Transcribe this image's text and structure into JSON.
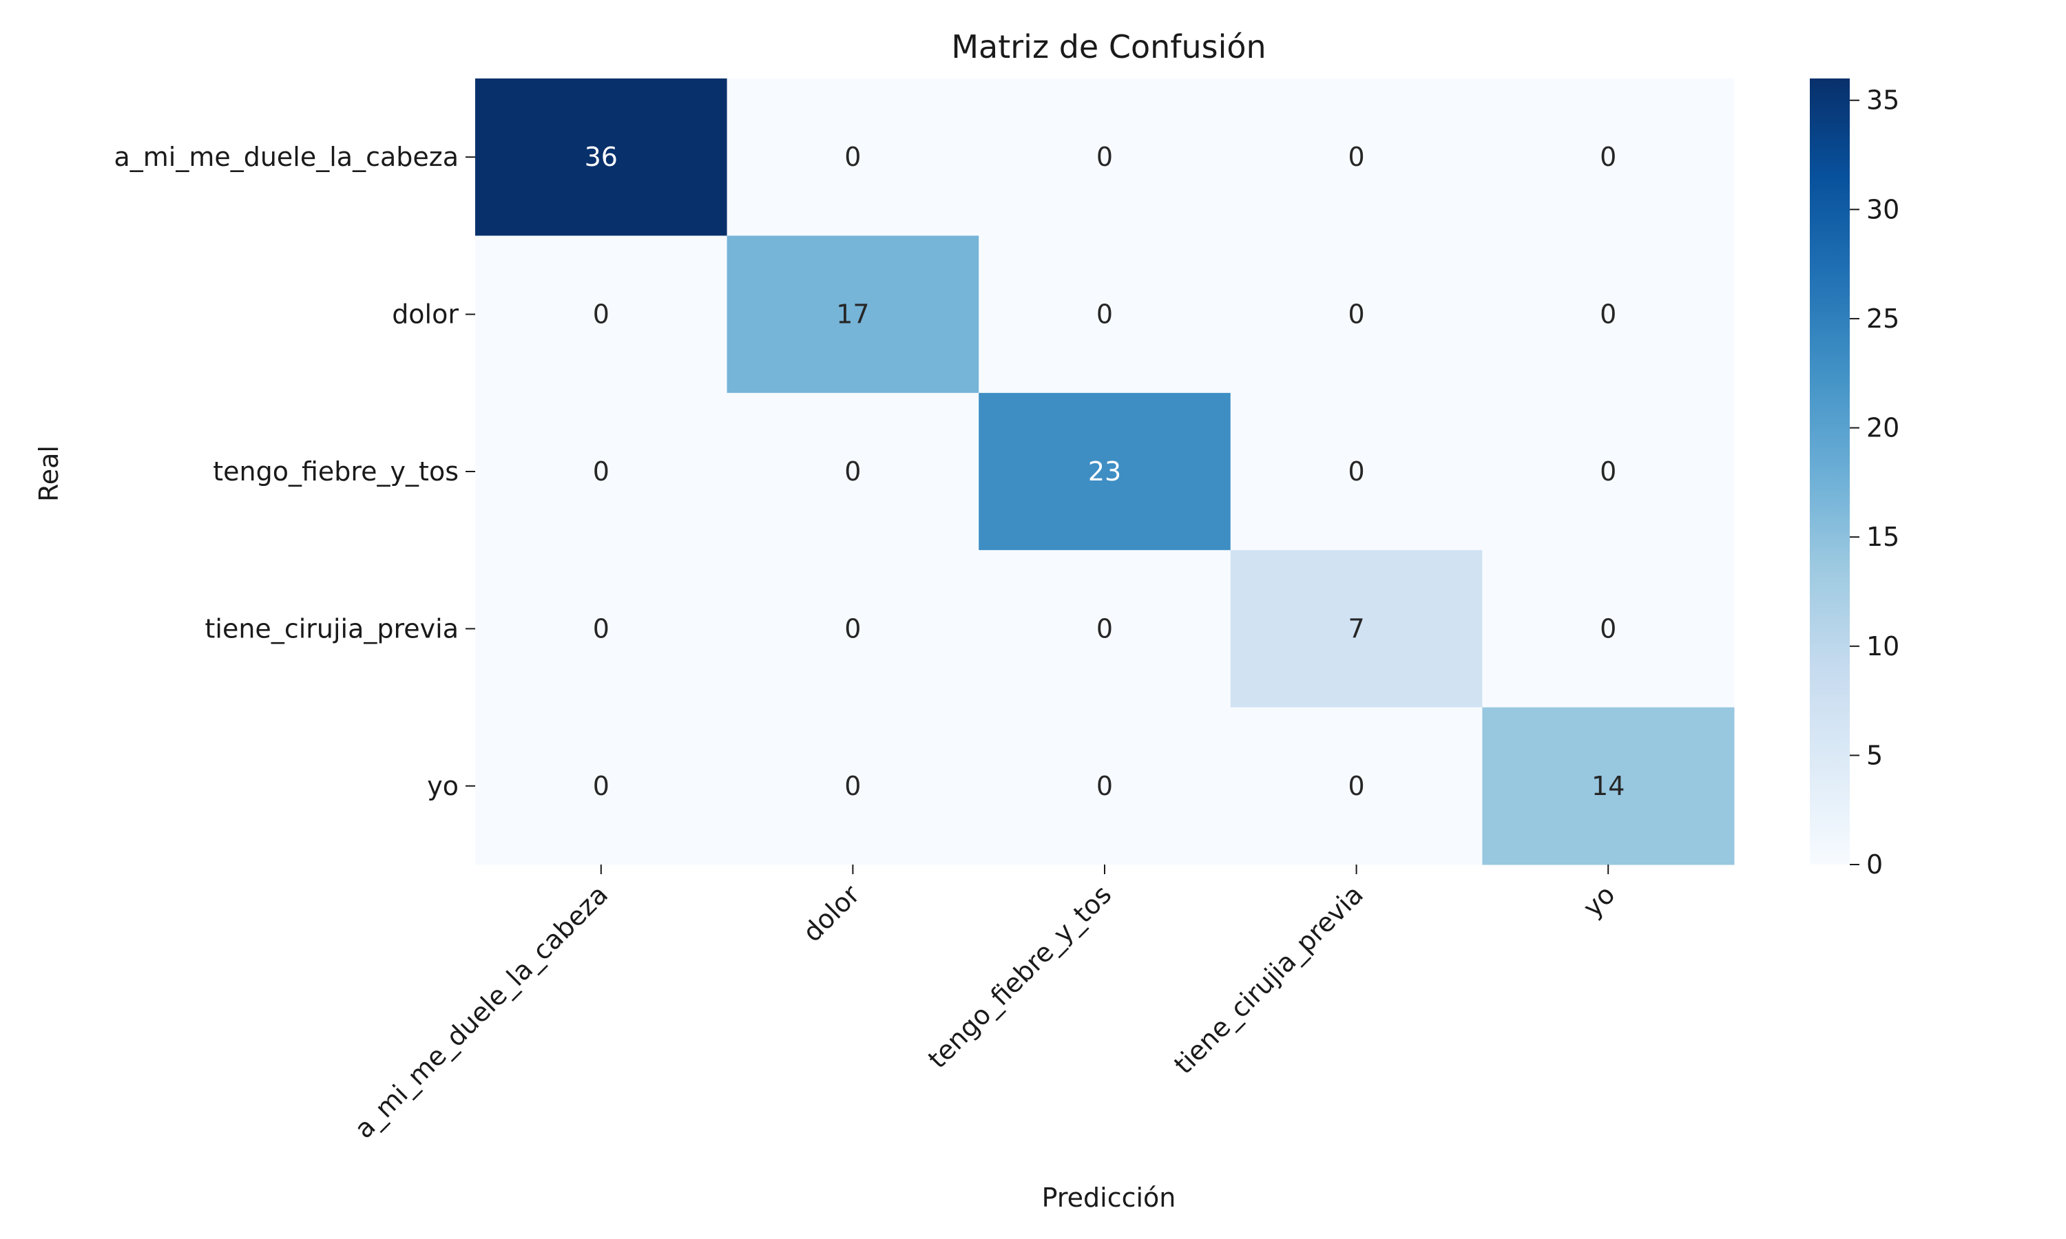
{
  "chart_data": {
    "type": "heatmap",
    "title": "Matriz de Confusión",
    "xlabel": "Predicción",
    "ylabel": "Real",
    "x_categories": [
      "a_mi_me_duele_la_cabeza",
      "dolor",
      "tengo_fiebre_y_tos",
      "tiene_cirujia_previa",
      "yo"
    ],
    "y_categories": [
      "a_mi_me_duele_la_cabeza",
      "dolor",
      "tengo_fiebre_y_tos",
      "tiene_cirujia_previa",
      "yo"
    ],
    "values": [
      [
        36,
        0,
        0,
        0,
        0
      ],
      [
        0,
        17,
        0,
        0,
        0
      ],
      [
        0,
        0,
        23,
        0,
        0
      ],
      [
        0,
        0,
        0,
        7,
        0
      ],
      [
        0,
        0,
        0,
        0,
        14
      ]
    ],
    "colorbar": {
      "colormap": "Blues",
      "range": [
        0,
        36
      ],
      "ticks": [
        0,
        5,
        10,
        15,
        20,
        25,
        30,
        35
      ]
    },
    "grid": false
  }
}
